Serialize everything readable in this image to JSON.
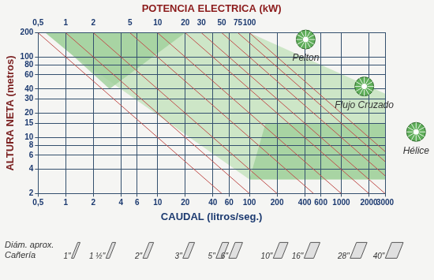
{
  "chart_data": {
    "type": "scatter",
    "log": true,
    "grid": true,
    "x_label": "CAUDAL (litros/seg.)",
    "y_label": "ALTURA NETA (metros)",
    "x2_label": "POTENCIA ELECTRICA (kW)",
    "xlim": [
      0.5,
      3000
    ],
    "xticks": [
      {
        "value": 0.5,
        "label": "0,5"
      },
      1,
      2,
      4,
      6,
      10,
      20,
      40,
      60,
      100,
      200,
      400,
      600,
      1000,
      2000,
      3000
    ],
    "ylim": [
      2,
      200
    ],
    "yticks": [
      2,
      4,
      6,
      8,
      10,
      15,
      20,
      30,
      40,
      60,
      80,
      100,
      200
    ],
    "x2lim": [
      0.5,
      3000
    ],
    "x2ticks": [
      {
        "value": 0.5,
        "label": "0,5"
      },
      1,
      2,
      5,
      10,
      20,
      30,
      50,
      75,
      100
    ],
    "regions": [
      {
        "name": "Flujo Cruzado",
        "color": "#c3e2bb",
        "x": [
          0.6,
          100,
          3000,
          3000,
          100,
          1.15
        ],
        "y": [
          200,
          200,
          35,
          3,
          3,
          108
        ],
        "label_x": 1780,
        "label_y": 25
      },
      {
        "name": "Pelton",
        "color": "#9fd09a",
        "x": [
          0.6,
          20,
          3,
          1.15
        ],
        "y": [
          200,
          200,
          40,
          108
        ],
        "label_x": 410,
        "label_y": 96
      },
      {
        "name": "Hélice",
        "color": "#9fd09a",
        "x": [
          150,
          3000,
          3000,
          100
        ],
        "y": [
          15,
          15,
          3,
          3
        ],
        "label_x": 6530,
        "label_y": 6.8
      }
    ],
    "power_lines": {
      "color": "#c0504d",
      "lines": [
        {
          "x": [
            0.5,
            50
          ],
          "y": [
            200,
            2
          ]
        },
        {
          "x": [
            1,
            100
          ],
          "y": [
            200,
            2
          ]
        },
        {
          "x": [
            2,
            200
          ],
          "y": [
            200,
            2
          ]
        },
        {
          "x": [
            5,
            500
          ],
          "y": [
            200,
            2
          ]
        },
        {
          "x": [
            10,
            1000
          ],
          "y": [
            200,
            2
          ]
        },
        {
          "x": [
            20,
            2000
          ],
          "y": [
            200,
            2
          ]
        },
        {
          "x": [
            30,
            3000
          ],
          "y": [
            200,
            2
          ]
        },
        {
          "x": [
            50,
            3000
          ],
          "y": [
            200,
            3.33
          ]
        },
        {
          "x": [
            75,
            3000
          ],
          "y": [
            200,
            5
          ]
        },
        {
          "x": [
            100,
            3000
          ],
          "y": [
            200,
            6.67
          ]
        }
      ]
    },
    "pipes": {
      "title": [
        "Diám. aprox.",
        "Cañería"
      ],
      "labels": [
        "1\"",
        "1 ½\"",
        "2\"",
        "3\"",
        "5\"",
        "6\"",
        "10\"",
        "16\"",
        "28\"",
        "40\""
      ],
      "caudal": [
        1.2,
        2.85,
        7.2,
        19.6,
        45,
        62,
        189,
        410,
        1300,
        3140
      ]
    }
  }
}
